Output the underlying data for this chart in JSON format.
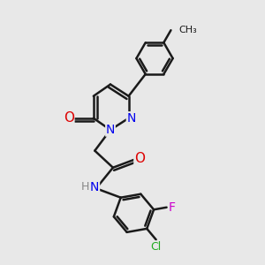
{
  "background_color": "#e8e8e8",
  "bond_color": "#1a1a1a",
  "bond_width": 1.8,
  "atom_colors": {
    "N": "#0000ee",
    "O": "#dd0000",
    "F": "#cc00cc",
    "Cl": "#22aa22",
    "H": "#888888",
    "C": "#1a1a1a"
  },
  "font_size": 9,
  "fig_width": 3.0,
  "fig_height": 3.0,
  "dpi": 100
}
